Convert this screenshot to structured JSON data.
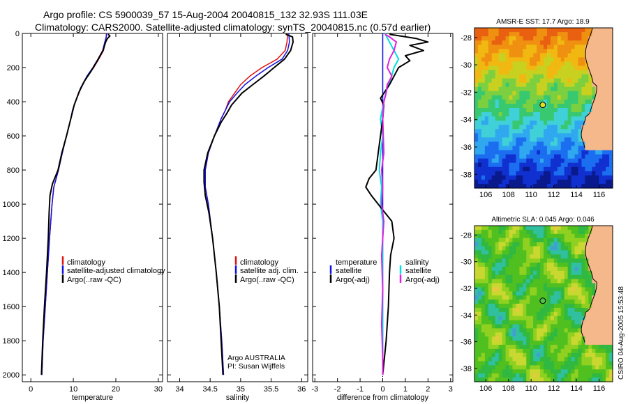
{
  "header": {
    "line1": "Argo profile: CS 5900039_57 15-Aug-2004 20040815_132 32.93S 111.03E",
    "line2": "Climatology: CARS2000. Satellite-adjusted climatology: synTS_20040815.nc (0.57d earlier)"
  },
  "colors": {
    "climatology": "#e01010",
    "satellite": "#1010e0",
    "argo": "#000000",
    "salinity": "#e020e0",
    "sal_satellite": "#00e0e0",
    "land": "#f5b88a"
  },
  "chart_data": [
    {
      "id": "temperature",
      "type": "line",
      "xlabel": "temperature",
      "ylabel": "",
      "xlim": [
        -2,
        31
      ],
      "ylim": [
        2040,
        0
      ],
      "xticks": [
        0,
        10,
        20,
        30
      ],
      "yticks": [
        0,
        200,
        400,
        600,
        800,
        1000,
        1200,
        1400,
        1600,
        1800,
        2000
      ],
      "legend": [
        "climatology",
        "satellite-adjusted climatology",
        "Argo(..raw -QC)"
      ],
      "series": [
        {
          "name": "climatology",
          "color": "#e01010",
          "width": 1.5,
          "points": [
            [
              17.8,
              0
            ],
            [
              17.7,
              25
            ],
            [
              17.5,
              50
            ],
            [
              17.1,
              100
            ],
            [
              16.0,
              150
            ],
            [
              14.8,
              200
            ],
            [
              13.3,
              250
            ],
            [
              11.8,
              320
            ],
            [
              10.5,
              400
            ],
            [
              9.8,
              450
            ],
            [
              9.4,
              500
            ],
            [
              8.4,
              600
            ],
            [
              7.4,
              700
            ],
            [
              6.5,
              800
            ],
            [
              5.4,
              900
            ],
            [
              5.0,
              1000
            ],
            [
              4.4,
              1200
            ],
            [
              3.9,
              1400
            ],
            [
              3.4,
              1600
            ],
            [
              2.9,
              1800
            ],
            [
              2.6,
              2000
            ]
          ]
        },
        {
          "name": "satellite-adjusted climatology",
          "color": "#1010e0",
          "width": 1.5,
          "points": [
            [
              17.9,
              0
            ],
            [
              17.7,
              25
            ],
            [
              17.4,
              50
            ],
            [
              16.9,
              100
            ],
            [
              15.8,
              150
            ],
            [
              14.6,
              200
            ],
            [
              13.2,
              250
            ],
            [
              11.7,
              320
            ],
            [
              10.5,
              400
            ],
            [
              9.8,
              450
            ],
            [
              9.4,
              500
            ],
            [
              8.4,
              600
            ],
            [
              7.4,
              700
            ],
            [
              6.5,
              800
            ],
            [
              5.4,
              900
            ],
            [
              5.0,
              1000
            ],
            [
              4.4,
              1200
            ],
            [
              3.9,
              1400
            ],
            [
              3.4,
              1600
            ],
            [
              2.9,
              1800
            ],
            [
              2.6,
              2000
            ]
          ]
        },
        {
          "name": "Argo(..raw -QC)",
          "color": "#000000",
          "width": 2,
          "points": [
            [
              18.2,
              5
            ],
            [
              18.6,
              15
            ],
            [
              18.0,
              30
            ],
            [
              17.6,
              50
            ],
            [
              17.0,
              100
            ],
            [
              15.4,
              170
            ],
            [
              14.2,
              220
            ],
            [
              12.6,
              280
            ],
            [
              11.4,
              340
            ],
            [
              10.2,
              420
            ],
            [
              9.7,
              470
            ],
            [
              8.4,
              600
            ],
            [
              7.3,
              700
            ],
            [
              6.4,
              800
            ],
            [
              5.1,
              880
            ],
            [
              4.5,
              950
            ],
            [
              4.3,
              1050
            ],
            [
              4.1,
              1200
            ],
            [
              3.7,
              1400
            ],
            [
              3.2,
              1600
            ],
            [
              2.8,
              1800
            ],
            [
              2.5,
              2000
            ]
          ]
        }
      ]
    },
    {
      "id": "salinity",
      "type": "line",
      "xlabel": "salinity",
      "xlim": [
        33.8,
        36.1
      ],
      "ylim": [
        2040,
        0
      ],
      "xticks": [
        34,
        34.5,
        35,
        35.5,
        36
      ],
      "yticks": [
        0,
        200,
        400,
        600,
        800,
        1000,
        1200,
        1400,
        1600,
        1800,
        2000
      ],
      "legend": [
        "climatology",
        "satellite adj. clim.",
        "Argo(..raw -QC)"
      ],
      "annotations": [
        "Argo AUSTRALIA",
        "PI: Susan Wijffels"
      ],
      "series": [
        {
          "name": "climatology",
          "color": "#e01010",
          "width": 1.5,
          "points": [
            [
              35.77,
              0
            ],
            [
              35.76,
              50
            ],
            [
              35.73,
              100
            ],
            [
              35.6,
              150
            ],
            [
              35.35,
              200
            ],
            [
              35.15,
              250
            ],
            [
              35.0,
              300
            ],
            [
              34.9,
              350
            ],
            [
              34.8,
              400
            ],
            [
              34.75,
              450
            ],
            [
              34.68,
              500
            ],
            [
              34.57,
              600
            ],
            [
              34.47,
              700
            ],
            [
              34.42,
              800
            ],
            [
              34.42,
              900
            ],
            [
              34.47,
              1000
            ],
            [
              34.54,
              1200
            ],
            [
              34.6,
              1400
            ],
            [
              34.65,
              1600
            ],
            [
              34.69,
              1800
            ],
            [
              34.72,
              2000
            ]
          ]
        },
        {
          "name": "satellite adj. clim.",
          "color": "#1010e0",
          "width": 1.5,
          "points": [
            [
              35.79,
              0
            ],
            [
              35.8,
              50
            ],
            [
              35.77,
              100
            ],
            [
              35.68,
              150
            ],
            [
              35.45,
              200
            ],
            [
              35.25,
              250
            ],
            [
              35.07,
              300
            ],
            [
              34.94,
              350
            ],
            [
              34.82,
              400
            ],
            [
              34.75,
              450
            ],
            [
              34.68,
              500
            ],
            [
              34.57,
              600
            ],
            [
              34.47,
              700
            ],
            [
              34.42,
              800
            ],
            [
              34.42,
              900
            ],
            [
              34.47,
              1000
            ],
            [
              34.54,
              1200
            ],
            [
              34.6,
              1400
            ],
            [
              34.65,
              1600
            ],
            [
              34.69,
              1800
            ],
            [
              34.72,
              2000
            ]
          ]
        },
        {
          "name": "Argo(..raw -QC)",
          "color": "#000000",
          "width": 2,
          "points": [
            [
              35.74,
              5
            ],
            [
              35.85,
              20
            ],
            [
              35.86,
              50
            ],
            [
              35.82,
              100
            ],
            [
              35.72,
              150
            ],
            [
              35.55,
              200
            ],
            [
              35.38,
              250
            ],
            [
              35.2,
              300
            ],
            [
              35.02,
              350
            ],
            [
              34.85,
              420
            ],
            [
              34.77,
              470
            ],
            [
              34.68,
              520
            ],
            [
              34.57,
              600
            ],
            [
              34.46,
              700
            ],
            [
              34.4,
              800
            ],
            [
              34.4,
              870
            ],
            [
              34.42,
              950
            ],
            [
              34.48,
              1050
            ],
            [
              34.54,
              1200
            ],
            [
              34.6,
              1400
            ],
            [
              34.65,
              1600
            ],
            [
              34.68,
              1800
            ],
            [
              34.71,
              2000
            ]
          ]
        }
      ]
    },
    {
      "id": "difference",
      "type": "line",
      "xlabel": "difference from climatology",
      "xlim": [
        -3.1,
        3.1
      ],
      "ylim": [
        2040,
        0
      ],
      "xticks": [
        -3,
        -2,
        -1,
        0,
        1,
        2,
        3
      ],
      "yticks": [
        0,
        200,
        400,
        600,
        800,
        1000,
        1200,
        1400,
        1600,
        1800,
        2000
      ],
      "legend_left": [
        "temperature",
        "satellite",
        "Argo(-adj)"
      ],
      "legend_right": [
        "salinity",
        "satellite",
        "Argo(-adj)"
      ],
      "series": [
        {
          "name": "temperature satellite",
          "color": "#1010e0",
          "width": 1.5,
          "points": [
            [
              0,
              0
            ],
            [
              0,
              1000
            ],
            [
              0,
              2000
            ]
          ]
        },
        {
          "name": "salinity satellite",
          "color": "#00e0e0",
          "width": 2,
          "points": [
            [
              0.1,
              0
            ],
            [
              0.3,
              50
            ],
            [
              0.5,
              100
            ],
            [
              0.7,
              150
            ],
            [
              0.5,
              200
            ],
            [
              0.35,
              270
            ],
            [
              0.15,
              340
            ],
            [
              0.05,
              400
            ],
            [
              -0.1,
              500
            ],
            [
              0,
              600
            ],
            [
              -0.1,
              700
            ],
            [
              -0.15,
              800
            ],
            [
              -0.05,
              900
            ],
            [
              -0.1,
              1000
            ],
            [
              0,
              1100
            ],
            [
              0,
              2000
            ]
          ]
        },
        {
          "name": "Argo(-adj) temperature",
          "color": "#000000",
          "width": 2,
          "points": [
            [
              0.3,
              5
            ],
            [
              0.8,
              15
            ],
            [
              1.5,
              30
            ],
            [
              2.0,
              50
            ],
            [
              1.2,
              70
            ],
            [
              1.8,
              100
            ],
            [
              1.0,
              130
            ],
            [
              1.2,
              160
            ],
            [
              0.7,
              200
            ],
            [
              0.5,
              250
            ],
            [
              0.3,
              300
            ],
            [
              -0.1,
              380
            ],
            [
              0.05,
              420
            ],
            [
              0,
              500
            ],
            [
              -0.1,
              600
            ],
            [
              -0.2,
              700
            ],
            [
              -0.3,
              800
            ],
            [
              -0.6,
              850
            ],
            [
              -0.75,
              900
            ],
            [
              -0.5,
              950
            ],
            [
              -0.2,
              1000
            ],
            [
              0.1,
              1050
            ],
            [
              0.4,
              1100
            ],
            [
              0.5,
              1200
            ],
            [
              0.35,
              1300
            ],
            [
              0.3,
              1400
            ],
            [
              0.25,
              1600
            ],
            [
              0.15,
              1800
            ],
            [
              0,
              2000
            ]
          ]
        },
        {
          "name": "Argo(-adj) salinity",
          "color": "#e020e0",
          "width": 2,
          "points": [
            [
              0.1,
              5
            ],
            [
              0.3,
              20
            ],
            [
              0.6,
              50
            ],
            [
              0.5,
              100
            ],
            [
              0.3,
              150
            ],
            [
              0.2,
              200
            ],
            [
              0.4,
              250
            ],
            [
              0.2,
              300
            ],
            [
              0.15,
              350
            ],
            [
              0.05,
              400
            ],
            [
              0,
              500
            ],
            [
              0.05,
              700
            ],
            [
              -0.05,
              800
            ],
            [
              0,
              900
            ],
            [
              -0.05,
              1000
            ],
            [
              0.05,
              1100
            ],
            [
              -0.05,
              1300
            ],
            [
              0,
              1500
            ],
            [
              -0.05,
              1700
            ],
            [
              0,
              1900
            ],
            [
              0,
              2000
            ]
          ]
        }
      ]
    }
  ],
  "maps": {
    "sst": {
      "title": "AMSR-E SST: 17.7 Argo: 18.9",
      "xticks": [
        106,
        108,
        110,
        112,
        114,
        116
      ],
      "yticks": [
        -28,
        -30,
        -32,
        -34,
        -36,
        -38
      ],
      "marker": [
        111.03,
        -32.93
      ]
    },
    "sla": {
      "title": "Altimetric SLA: 0.045 Argo: 0.046",
      "xticks": [
        106,
        108,
        110,
        112,
        114,
        116
      ],
      "yticks": [
        -28,
        -30,
        -32,
        -34,
        -36,
        -38
      ],
      "marker": [
        111.03,
        -32.93
      ],
      "side_label": "CSIRO 04-Aug-2005 15:53:48"
    }
  }
}
